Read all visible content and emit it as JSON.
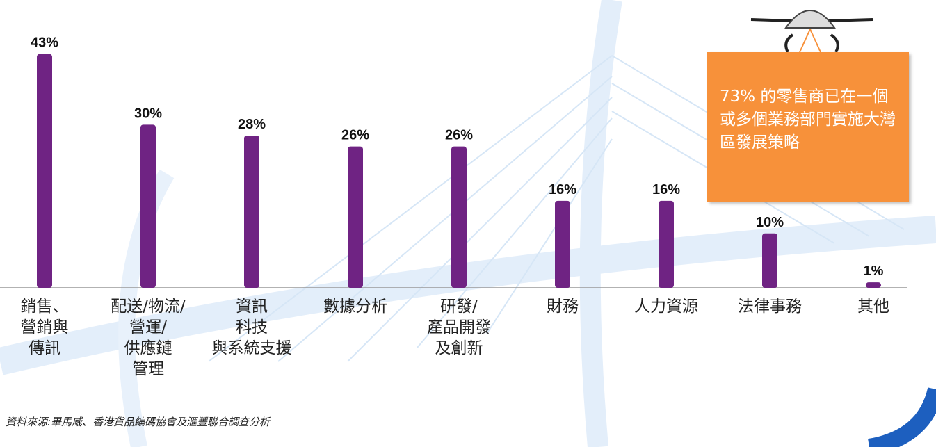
{
  "chart_data": {
    "type": "bar",
    "categories": [
      "銷售、\n營銷與\n傳訊",
      "配送/物流/\n營運/\n供應鏈\n管理",
      "資訊\n科技\n與系統支援",
      "數據分析",
      "研發/\n產品開發\n及創新",
      "財務",
      "人力資源",
      "法律事務",
      "其他"
    ],
    "values": [
      43,
      30,
      28,
      26,
      26,
      16,
      16,
      10,
      1
    ],
    "value_labels": [
      "43%",
      "30%",
      "28%",
      "26%",
      "26%",
      "16%",
      "16%",
      "10%",
      "1%"
    ],
    "color": "#6f2383",
    "ylim": [
      0,
      45
    ],
    "callout": "73% 的零售商已在一個或多個業務部門實施大灣區發展策略",
    "source": "資料來源:畢馬威、香港貨品編碼協會及滙豐聯合調查分析"
  }
}
